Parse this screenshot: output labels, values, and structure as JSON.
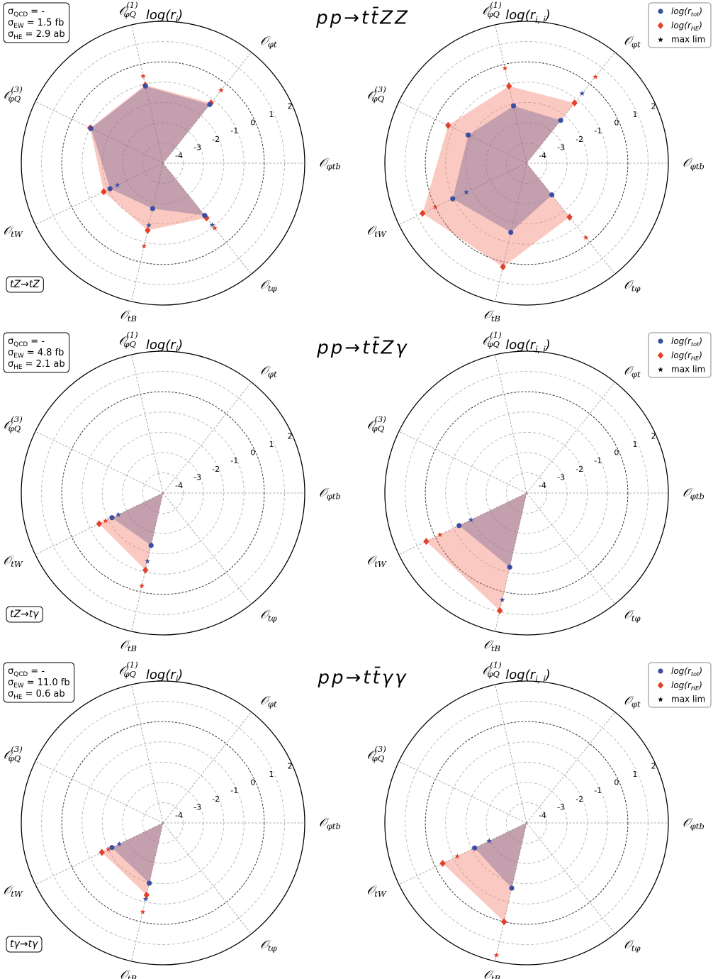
{
  "chart_data": [
    {
      "type": "radar",
      "row_title": "pp→tt̄ZZ",
      "title": {
        "main": "log(r",
        "sub": "i",
        "rest": ")"
      },
      "info": [
        {
          "main": "σ",
          "sub": "QCD",
          "rest": " = -"
        },
        {
          "main": "σ",
          "sub": "EW",
          "rest": " = 1.5 fb"
        },
        {
          "main": "σ",
          "sub": "HE",
          "rest": " = 2.9 ab"
        }
      ],
      "process": "tZ→tZ",
      "axes": [
        {
          "main": "𝒪",
          "sub": "φtb"
        },
        {
          "main": "𝒪",
          "sub": "φt"
        },
        {
          "main": "𝒪",
          "sub": "φQ",
          "sup": "(1)"
        },
        {
          "main": "𝒪",
          "sub": "φQ",
          "sup": "(3)"
        },
        {
          "main": "𝒪",
          "sub": "tW"
        },
        {
          "main": "𝒪",
          "sub": "tB"
        },
        {
          "main": "𝒪",
          "sub": "tφ"
        }
      ],
      "rlim": [
        -5,
        2
      ],
      "rticks": [
        -4,
        -3,
        -2,
        -1,
        0,
        1,
        2
      ],
      "reference_ring": 0,
      "series": [
        {
          "color": "#3b4ea3",
          "marker": "circle",
          "fill": true,
          "values": [
            null,
            -1.3,
            -1.1,
            -1.05,
            -2.1,
            -2.7,
            -1.7
          ]
        },
        {
          "color": "#e4402a",
          "marker": "diamond",
          "fill": true,
          "values": [
            null,
            -1.2,
            -1.05,
            -1.0,
            -1.75,
            -1.6,
            -1.55
          ]
        },
        {
          "color": "#3b4ea3",
          "marker": "star",
          "fill": false,
          "values": [
            null,
            -0.4,
            null,
            null,
            -2.5,
            -1.85,
            -1.1
          ]
        },
        {
          "color": "#e4402a",
          "marker": "star",
          "fill": false,
          "values": [
            null,
            -0.4,
            -0.6,
            null,
            null,
            -0.8,
            -0.9
          ]
        }
      ]
    },
    {
      "type": "radar",
      "title": {
        "main": "log(r",
        "sub": "i, i",
        "rest": ")"
      },
      "legend": "upper right",
      "axes": [
        {
          "main": "𝒪",
          "sub": "φtb"
        },
        {
          "main": "𝒪",
          "sub": "φt"
        },
        {
          "main": "𝒪",
          "sub": "φQ",
          "sup": "(1)"
        },
        {
          "main": "𝒪",
          "sub": "φQ",
          "sup": "(3)"
        },
        {
          "main": "𝒪",
          "sub": "tW"
        },
        {
          "main": "𝒪",
          "sub": "tB"
        },
        {
          "main": "𝒪",
          "sub": "tφ"
        }
      ],
      "rlim": [
        -5,
        2
      ],
      "rticks": [
        -4,
        -3,
        -2,
        -1,
        0,
        1,
        2
      ],
      "reference_ring": 0,
      "series": [
        {
          "name": {
            "main": "log(r",
            "sub": "tot",
            "rest": ")"
          },
          "color": "#3b4ea3",
          "marker": "circle",
          "fill": true,
          "values": [
            null,
            -2.3,
            -2.1,
            -1.8,
            -0.95,
            -1.5,
            -3.0
          ]
        },
        {
          "name": {
            "main": "log(r",
            "sub": "HE",
            "rest": ")"
          },
          "color": "#e4402a",
          "marker": "diamond",
          "fill": true,
          "values": [
            null,
            -1.2,
            -1.1,
            -0.7,
            0.7,
            0.25,
            -1.6
          ]
        },
        {
          "name": "max lim",
          "legend_color": "#000000",
          "color": "#3b4ea3",
          "marker": "star",
          "fill": false,
          "values": [
            null,
            -0.6,
            null,
            null,
            -1.7,
            0.2,
            -1.6
          ]
        },
        {
          "color": "#e4402a",
          "marker": "star",
          "fill": false,
          "values": [
            null,
            0.45,
            -0.2,
            null,
            0,
            null,
            -0.3
          ]
        }
      ]
    },
    {
      "type": "radar",
      "row_title": "pp→tt̄Zγ",
      "title": {
        "main": "log(r",
        "sub": "i",
        "rest": ")"
      },
      "info": [
        {
          "main": "σ",
          "sub": "QCD",
          "rest": " = -"
        },
        {
          "main": "σ",
          "sub": "EW",
          "rest": " = 4.8 fb"
        },
        {
          "main": "σ",
          "sub": "HE",
          "rest": " = 2.1 ab"
        }
      ],
      "process": "tZ→tγ",
      "axes": [
        {
          "main": "𝒪",
          "sub": "φtb"
        },
        {
          "main": "𝒪",
          "sub": "φt"
        },
        {
          "main": "𝒪",
          "sub": "φQ",
          "sup": "(1)"
        },
        {
          "main": "𝒪",
          "sub": "φQ",
          "sup": "(3)"
        },
        {
          "main": "𝒪",
          "sub": "tW"
        },
        {
          "main": "𝒪",
          "sub": "tB"
        },
        {
          "main": "𝒪",
          "sub": "tφ"
        }
      ],
      "rlim": [
        -5,
        2
      ],
      "rticks": [
        -4,
        -3,
        -2,
        -1,
        0,
        1,
        2
      ],
      "reference_ring": 0,
      "series": [
        {
          "color": "#3b4ea3",
          "marker": "circle",
          "fill": true,
          "values": [
            null,
            null,
            null,
            null,
            -2.2,
            -2.35,
            null
          ]
        },
        {
          "color": "#e4402a",
          "marker": "diamond",
          "fill": true,
          "values": [
            null,
            null,
            null,
            null,
            -1.5,
            -1.1,
            null
          ]
        },
        {
          "color": "#3b4ea3",
          "marker": "star",
          "fill": false,
          "values": [
            null,
            null,
            null,
            null,
            -2.55,
            -1.55,
            null
          ]
        },
        {
          "color": "#e4402a",
          "marker": "star",
          "fill": false,
          "values": [
            null,
            null,
            null,
            null,
            -1.85,
            -0.3,
            null
          ]
        }
      ]
    },
    {
      "type": "radar",
      "title": {
        "main": "log(r",
        "sub": "i, i",
        "rest": ")"
      },
      "legend": "upper right",
      "axes": [
        {
          "main": "𝒪",
          "sub": "φtb"
        },
        {
          "main": "𝒪",
          "sub": "φt"
        },
        {
          "main": "𝒪",
          "sub": "φQ",
          "sup": "(1)"
        },
        {
          "main": "𝒪",
          "sub": "φQ",
          "sup": "(3)"
        },
        {
          "main": "𝒪",
          "sub": "tW"
        },
        {
          "main": "𝒪",
          "sub": "tB"
        },
        {
          "main": "𝒪",
          "sub": "tφ"
        }
      ],
      "rlim": [
        -5,
        2
      ],
      "rticks": [
        -4,
        -3,
        -2,
        -1,
        0,
        1,
        2
      ],
      "reference_ring": 0,
      "series": [
        {
          "name": {
            "main": "log(r",
            "sub": "tot",
            "rest": ")"
          },
          "color": "#3b4ea3",
          "marker": "circle",
          "fill": true,
          "values": [
            null,
            null,
            null,
            null,
            -1.3,
            -1.25,
            null
          ]
        },
        {
          "name": {
            "main": "log(r",
            "sub": "HE",
            "rest": ")"
          },
          "color": "#e4402a",
          "marker": "diamond",
          "fill": true,
          "values": [
            null,
            null,
            null,
            null,
            0.5,
            0.95,
            null
          ]
        },
        {
          "name": "max lim",
          "legend_color": "#000000",
          "color": "#3b4ea3",
          "marker": "star",
          "fill": false,
          "values": [
            null,
            null,
            null,
            null,
            -1.95,
            0.4,
            null
          ]
        },
        {
          "color": "#e4402a",
          "marker": "star",
          "fill": false,
          "values": [
            null,
            null,
            null,
            null,
            -0.25,
            0.95,
            null
          ]
        }
      ]
    },
    {
      "type": "radar",
      "row_title": "pp→tt̄γγ",
      "title": {
        "main": "log(r",
        "sub": "i",
        "rest": ")"
      },
      "info": [
        {
          "main": "σ",
          "sub": "QCD",
          "rest": " = -"
        },
        {
          "main": "σ",
          "sub": "EW",
          "rest": " = 11.0 fb"
        },
        {
          "main": "σ",
          "sub": "HE",
          "rest": " = 0.6 ab"
        }
      ],
      "process": "tγ→tγ",
      "axes": [
        {
          "main": "𝒪",
          "sub": "φtb"
        },
        {
          "main": "𝒪",
          "sub": "φt"
        },
        {
          "main": "𝒪",
          "sub": "φQ",
          "sup": "(1)"
        },
        {
          "main": "𝒪",
          "sub": "φQ",
          "sup": "(3)"
        },
        {
          "main": "𝒪",
          "sub": "tW"
        },
        {
          "main": "𝒪",
          "sub": "tB"
        },
        {
          "main": "𝒪",
          "sub": "tφ"
        }
      ],
      "rlim": [
        -5,
        2
      ],
      "rticks": [
        -4,
        -3,
        -2,
        -1,
        0,
        1,
        2
      ],
      "reference_ring": 0,
      "series": [
        {
          "color": "#3b4ea3",
          "marker": "circle",
          "fill": true,
          "values": [
            null,
            null,
            null,
            null,
            -2.2,
            -1.95,
            null
          ]
        },
        {
          "color": "#e4402a",
          "marker": "diamond",
          "fill": true,
          "values": [
            null,
            null,
            null,
            null,
            -1.65,
            -1.35,
            null
          ]
        },
        {
          "color": "#3b4ea3",
          "marker": "star",
          "fill": false,
          "values": [
            null,
            null,
            null,
            null,
            -2.6,
            -1.15,
            null
          ]
        },
        {
          "color": "#e4402a",
          "marker": "star",
          "fill": false,
          "values": [
            null,
            null,
            null,
            null,
            -2.0,
            -0.5,
            null
          ]
        }
      ]
    },
    {
      "type": "radar",
      "title": {
        "main": "log(r",
        "sub": "i, i",
        "rest": ")"
      },
      "legend": "upper right",
      "axes": [
        {
          "main": "𝒪",
          "sub": "φtb"
        },
        {
          "main": "𝒪",
          "sub": "φt"
        },
        {
          "main": "𝒪",
          "sub": "φQ",
          "sup": "(1)"
        },
        {
          "main": "𝒪",
          "sub": "φQ",
          "sup": "(3)"
        },
        {
          "main": "𝒪",
          "sub": "tW"
        },
        {
          "main": "𝒪",
          "sub": "tB"
        },
        {
          "main": "𝒪",
          "sub": "tφ"
        }
      ],
      "rlim": [
        -5,
        2
      ],
      "rticks": [
        -4,
        -3,
        -2,
        -1,
        0,
        1,
        2
      ],
      "reference_ring": 0,
      "series": [
        {
          "name": {
            "main": "log(r",
            "sub": "tot",
            "rest": ")"
          },
          "color": "#3b4ea3",
          "marker": "circle",
          "fill": true,
          "values": [
            null,
            null,
            null,
            null,
            -2.15,
            -1.7,
            null
          ]
        },
        {
          "name": {
            "main": "log(r",
            "sub": "HE",
            "rest": ")"
          },
          "color": "#e4402a",
          "marker": "diamond",
          "fill": true,
          "values": [
            null,
            null,
            null,
            null,
            -0.4,
            0.0,
            null
          ]
        },
        {
          "name": "max lim",
          "legend_color": "#000000",
          "color": "#3b4ea3",
          "marker": "star",
          "fill": false,
          "values": [
            null,
            null,
            null,
            null,
            -2.95,
            0.0,
            null
          ]
        },
        {
          "color": "#e4402a",
          "marker": "star",
          "fill": false,
          "values": [
            null,
            null,
            null,
            null,
            -1.2,
            1.7,
            null
          ]
        }
      ]
    }
  ]
}
